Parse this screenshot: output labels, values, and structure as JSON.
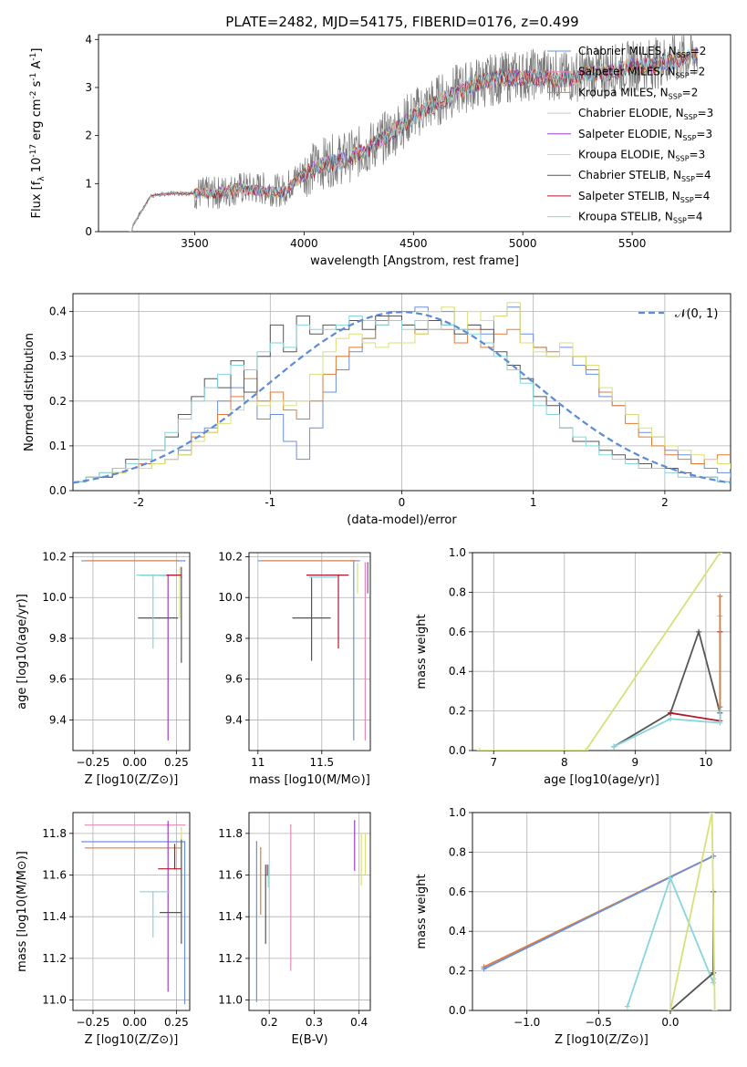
{
  "figure": {
    "title": "PLATE=2482, MJD=54175, FIBERID=0176, z=0.499"
  },
  "models": [
    {
      "name": "Chabrier MILES",
      "nssp": "2",
      "color": "#6a8fde"
    },
    {
      "name": "Salpeter MILES",
      "nssp": "2",
      "color": "#e68ab4"
    },
    {
      "name": "Kroupa MILES",
      "nssp": "2",
      "color": "#e07b39"
    },
    {
      "name": "Chabrier ELODIE",
      "nssp": "3",
      "color": "#c9c9c9"
    },
    {
      "name": "Salpeter ELODIE",
      "nssp": "3",
      "color": "#9b3fc8"
    },
    {
      "name": "Kroupa ELODIE",
      "nssp": "3",
      "color": "#d8e07a"
    },
    {
      "name": "Chabrier STELIB",
      "nssp": "4",
      "color": "#555555"
    },
    {
      "name": "Salpeter STELIB",
      "nssp": "4",
      "color": "#b2182b"
    },
    {
      "name": "Kroupa STELIB",
      "nssp": "4",
      "color": "#86d6dc"
    }
  ],
  "chart_data": [
    {
      "id": "spectrum",
      "type": "line",
      "title": "PLATE=2482, MJD=54175, FIBERID=0176, z=0.499",
      "xlabel": "wavelength [Angstrom, rest frame]",
      "ylabel": "Flux [f_λ 10^-17 erg cm^-2 s^-1 A^-1]",
      "xlim": [
        3060,
        5950
      ],
      "ylim": [
        0,
        4.1
      ],
      "xticks": [
        3500,
        4000,
        4500,
        5000,
        5500
      ],
      "yticks": [
        0,
        1,
        2,
        3,
        4
      ],
      "data_x": [
        3200,
        3300,
        3400,
        3500,
        3600,
        3700,
        3800,
        3900,
        4000,
        4100,
        4200,
        4300,
        4400,
        4500,
        4600,
        4700,
        4800,
        4900,
        5000,
        5100,
        5200,
        5300,
        5400,
        5500,
        5600,
        5700,
        5800
      ],
      "data_y": [
        0.0,
        0.75,
        0.8,
        0.8,
        0.8,
        0.9,
        0.9,
        0.85,
        1.25,
        1.45,
        1.55,
        1.75,
        2.05,
        2.45,
        2.7,
        2.95,
        3.1,
        3.2,
        3.25,
        3.3,
        3.2,
        3.3,
        3.35,
        3.45,
        3.5,
        3.6,
        3.7
      ],
      "model_y": [
        0.0,
        0.75,
        0.8,
        0.8,
        0.8,
        0.9,
        0.85,
        0.8,
        1.2,
        1.4,
        1.5,
        1.75,
        2.05,
        2.4,
        2.65,
        2.9,
        3.1,
        3.2,
        3.2,
        3.2,
        3.15,
        3.3,
        3.3,
        3.45,
        3.45,
        3.55,
        3.7
      ],
      "legend": "right"
    },
    {
      "id": "residuals",
      "type": "histogram",
      "xlabel": "(data-model)/error",
      "ylabel": "Normed distribution",
      "xlim": [
        -2.5,
        2.5
      ],
      "ylim": [
        0,
        0.44
      ],
      "xticks": [
        -2,
        -1,
        0,
        1,
        2
      ],
      "yticks": [
        0.0,
        0.1,
        0.2,
        0.3,
        0.4
      ],
      "reference_label": "𝒩(0, 1)",
      "bin_width": 0.1,
      "series": [
        {
          "name": "Chabrier MILES",
          "values": [
            0.02,
            0.03,
            0.03,
            0.04,
            0.06,
            0.06,
            0.06,
            0.07,
            0.09,
            0.13,
            0.14,
            0.2,
            0.23,
            0.2,
            0.16,
            0.17,
            0.11,
            0.07,
            0.14,
            0.22,
            0.27,
            0.31,
            0.34,
            0.38,
            0.4,
            0.4,
            0.41,
            0.4,
            0.4,
            0.36,
            0.37,
            0.35,
            0.39,
            0.41,
            0.35,
            0.32,
            0.3,
            0.32,
            0.28,
            0.26,
            0.21,
            0.19,
            0.17,
            0.13,
            0.12,
            0.09,
            0.08,
            0.06,
            0.05,
            0.04,
            0.03
          ],
          "x0": -2.5
        },
        {
          "name": "Kroupa MILES",
          "values": [
            0.02,
            0.03,
            0.04,
            0.04,
            0.05,
            0.06,
            0.06,
            0.07,
            0.08,
            0.12,
            0.13,
            0.17,
            0.21,
            0.25,
            0.2,
            0.22,
            0.18,
            0.16,
            0.2,
            0.26,
            0.3,
            0.32,
            0.34,
            0.37,
            0.39,
            0.37,
            0.35,
            0.36,
            0.36,
            0.33,
            0.36,
            0.32,
            0.35,
            0.36,
            0.33,
            0.32,
            0.31,
            0.33,
            0.3,
            0.27,
            0.22,
            0.19,
            0.15,
            0.12,
            0.1,
            0.08,
            0.07,
            0.06,
            0.07,
            0.08,
            0.08
          ],
          "x0": -2.5
        },
        {
          "name": "Chabrier STELIB",
          "values": [
            0.02,
            0.03,
            0.03,
            0.05,
            0.07,
            0.07,
            0.09,
            0.12,
            0.17,
            0.21,
            0.25,
            0.23,
            0.29,
            0.22,
            0.3,
            0.37,
            0.31,
            0.39,
            0.35,
            0.37,
            0.36,
            0.38,
            0.36,
            0.39,
            0.39,
            0.37,
            0.36,
            0.38,
            0.37,
            0.35,
            0.37,
            0.36,
            0.31,
            0.28,
            0.25,
            0.21,
            0.19,
            0.14,
            0.11,
            0.11,
            0.09,
            0.08,
            0.07,
            0.06,
            0.05,
            0.05,
            0.04,
            0.03,
            0.03,
            0.02,
            0.02
          ],
          "x0": -2.5
        },
        {
          "name": "Kroupa ELODIE",
          "values": [
            0.02,
            0.03,
            0.04,
            0.04,
            0.05,
            0.05,
            0.06,
            0.07,
            0.08,
            0.11,
            0.13,
            0.15,
            0.18,
            0.2,
            0.19,
            0.2,
            0.19,
            0.2,
            0.26,
            0.31,
            0.34,
            0.35,
            0.33,
            0.32,
            0.33,
            0.33,
            0.35,
            0.4,
            0.41,
            0.36,
            0.4,
            0.38,
            0.39,
            0.42,
            0.33,
            0.31,
            0.3,
            0.33,
            0.3,
            0.28,
            0.23,
            0.2,
            0.17,
            0.14,
            0.12,
            0.1,
            0.09,
            0.08,
            0.07,
            0.06,
            0.05
          ],
          "x0": -2.5
        },
        {
          "name": "Kroupa STELIB",
          "values": [
            0.02,
            0.03,
            0.04,
            0.05,
            0.06,
            0.07,
            0.09,
            0.13,
            0.16,
            0.2,
            0.23,
            0.26,
            0.28,
            0.27,
            0.31,
            0.33,
            0.32,
            0.37,
            0.36,
            0.36,
            0.37,
            0.39,
            0.38,
            0.37,
            0.38,
            0.36,
            0.38,
            0.36,
            0.37,
            0.36,
            0.35,
            0.33,
            0.3,
            0.27,
            0.24,
            0.19,
            0.17,
            0.14,
            0.12,
            0.1,
            0.08,
            0.07,
            0.06,
            0.05,
            0.05,
            0.04,
            0.03,
            0.03,
            0.03,
            0.02,
            0.02
          ],
          "x0": -2.5
        }
      ]
    },
    {
      "id": "z-age",
      "type": "scatter",
      "xlabel": "Z [log10(Z/Z⊙)]",
      "ylabel": "age [log10(age/yr)]",
      "xlim": [
        -0.37,
        0.33
      ],
      "ylim": [
        9.25,
        10.22
      ],
      "xticks": [
        -0.25,
        0.0,
        0.25
      ],
      "xtick_labels": [
        "−0.25",
        "0.00",
        "0.25"
      ],
      "yticks": [
        9.4,
        9.6,
        9.8,
        10.0,
        10.2
      ],
      "points": [
        {
          "model": "Chabrier MILES",
          "x": 0.3,
          "y": 10.18,
          "xerr": [
            0.62,
            0.0
          ]
        },
        {
          "model": "Kroupa MILES",
          "x": 0.26,
          "y": 10.18,
          "xerr": [
            0.56,
            0.0
          ]
        },
        {
          "model": "Salpeter ELODIE",
          "x": 0.2,
          "y": 10.11,
          "xerr": [
            0.05,
            0.05
          ],
          "yerr": [
            0.81,
            0.0
          ]
        },
        {
          "model": "Kroupa ELODIE",
          "x": 0.27,
          "y": 10.1,
          "yerr": [
            0.2,
            0.05
          ]
        },
        {
          "model": "Chabrier STELIB",
          "x": 0.15,
          "y": 9.9,
          "xerr": [
            0.13,
            0.11
          ]
        },
        {
          "model": "Chabrier STELIB",
          "x": 0.28,
          "y": 10.1,
          "yerr": [
            0.42,
            0.05
          ]
        },
        {
          "model": "Salpeter STELIB",
          "x": 0.18,
          "y": 10.11,
          "xerr": [
            0.15,
            0.1
          ]
        },
        {
          "model": "Kroupa STELIB",
          "x": 0.11,
          "y": 10.11,
          "xerr": [
            0.1,
            0.08
          ],
          "yerr": [
            0.36,
            0.0
          ]
        }
      ]
    },
    {
      "id": "mass-age",
      "type": "scatter",
      "xlabel": "mass [log10(M/M⊙)]",
      "ylabel": "",
      "xlim": [
        10.93,
        11.88
      ],
      "ylim": [
        9.25,
        10.22
      ],
      "xticks": [
        11.0,
        11.5
      ],
      "yticks": [
        9.4,
        9.6,
        9.8,
        10.0,
        10.2
      ],
      "points": [
        {
          "model": "Chabrier MILES",
          "x": 11.75,
          "y": 10.18,
          "xerr": [
            0.75,
            0.05
          ],
          "yerr": [
            0.88,
            0.0
          ]
        },
        {
          "model": "Salpeter MILES",
          "x": 11.84,
          "y": 10.17,
          "yerr": [
            0.87,
            0.0
          ]
        },
        {
          "model": "Kroupa MILES",
          "x": 11.73,
          "y": 10.18,
          "xerr": [
            0.7,
            0.05
          ]
        },
        {
          "model": "Salpeter ELODIE",
          "x": 11.86,
          "y": 10.17,
          "yerr": [
            0.15,
            0.0
          ]
        },
        {
          "model": "Kroupa ELODIE",
          "x": 11.78,
          "y": 10.12,
          "yerr": [
            0.1,
            0.05
          ]
        },
        {
          "model": "Chabrier STELIB",
          "x": 11.42,
          "y": 9.9,
          "xerr": [
            0.15,
            0.15
          ],
          "yerr": [
            0.21,
            0.2
          ]
        },
        {
          "model": "Salpeter STELIB",
          "x": 11.63,
          "y": 10.11,
          "xerr": [
            0.25,
            0.08
          ],
          "yerr": [
            0.36,
            0.0
          ]
        },
        {
          "model": "Kroupa STELIB",
          "x": 11.52,
          "y": 10.1,
          "xerr": [
            0.12,
            0.1
          ]
        }
      ]
    },
    {
      "id": "age-weight",
      "type": "line",
      "xlabel": "age [log10(age/yr)]",
      "ylabel": "mass weight",
      "xlim": [
        6.7,
        10.35
      ],
      "ylim": [
        0,
        1.0
      ],
      "xticks": [
        7,
        8,
        9,
        10
      ],
      "yticks": [
        0.0,
        0.2,
        0.4,
        0.6,
        0.8,
        1.0
      ],
      "series": [
        {
          "name": "Kroupa ELODIE",
          "x": [
            6.8,
            8.3,
            10.2
          ],
          "y": [
            0.0,
            0.0,
            1.0
          ]
        },
        {
          "name": "Chabrier STELIB",
          "x": [
            8.7,
            9.5,
            9.9,
            10.2
          ],
          "y": [
            0.02,
            0.19,
            0.6,
            0.19
          ]
        },
        {
          "name": "Salpeter STELIB",
          "x": [
            9.5,
            10.2,
            10.2
          ],
          "y": [
            0.19,
            0.15,
            0.6
          ]
        },
        {
          "name": "Kroupa STELIB",
          "x": [
            8.7,
            9.5,
            10.2,
            10.2
          ],
          "y": [
            0.02,
            0.16,
            0.14,
            0.68
          ]
        },
        {
          "name": "Kroupa MILES",
          "x": [
            10.2,
            10.2
          ],
          "y": [
            0.22,
            0.78
          ]
        }
      ]
    },
    {
      "id": "z-mass",
      "type": "scatter",
      "xlabel": "Z [log10(Z/Z⊙)]",
      "ylabel": "mass [log10(M/M⊙)]",
      "xlim": [
        -0.37,
        0.33
      ],
      "ylim": [
        10.95,
        11.9
      ],
      "xticks": [
        -0.25,
        0.0,
        0.25
      ],
      "xtick_labels": [
        "−0.25",
        "0.00",
        "0.25"
      ],
      "yticks": [
        11.0,
        11.2,
        11.4,
        11.6,
        11.8
      ],
      "points": [
        {
          "model": "Chabrier MILES",
          "x": 0.3,
          "y": 11.76,
          "xerr": [
            0.62,
            0.0
          ],
          "yerr": [
            0.78,
            0.0
          ]
        },
        {
          "model": "Salpeter MILES",
          "x": 0.3,
          "y": 11.84,
          "xerr": [
            0.6,
            0.0
          ]
        },
        {
          "model": "Kroupa MILES",
          "x": 0.27,
          "y": 11.73,
          "xerr": [
            0.57,
            0.0
          ]
        },
        {
          "model": "Salpeter ELODIE",
          "x": 0.2,
          "y": 11.84,
          "yerr": [
            0.8,
            0.02
          ]
        },
        {
          "model": "Kroupa ELODIE",
          "x": 0.28,
          "y": 11.78,
          "yerr": [
            0.24,
            0.05
          ]
        },
        {
          "model": "Chabrier STELIB",
          "x": 0.28,
          "y": 11.42,
          "xerr": [
            0.13,
            0.0
          ],
          "yerr": [
            0.15,
            0.35
          ]
        },
        {
          "model": "Salpeter STELIB",
          "x": 0.24,
          "y": 11.63,
          "xerr": [
            0.1,
            0.04
          ],
          "yerr": [
            0.0,
            0.12
          ]
        },
        {
          "model": "Kroupa STELIB",
          "x": 0.11,
          "y": 11.52,
          "xerr": [
            0.08,
            0.1
          ],
          "yerr": [
            0.22,
            0.0
          ]
        }
      ]
    },
    {
      "id": "ebv-mass",
      "type": "scatter",
      "xlabel": "E(B-V)",
      "ylabel": "",
      "xlim": [
        0.155,
        0.425
      ],
      "ylim": [
        10.95,
        11.9
      ],
      "xticks": [
        0.2,
        0.3,
        0.4
      ],
      "yticks": [
        11.0,
        11.2,
        11.4,
        11.6,
        11.8
      ],
      "points": [
        {
          "model": "Chabrier MILES",
          "x": 0.172,
          "y": 11.76,
          "yerr": [
            0.77,
            0.0
          ]
        },
        {
          "model": "Kroupa MILES",
          "x": 0.181,
          "y": 11.73,
          "yerr": [
            0.32,
            0.0
          ]
        },
        {
          "model": "Salpeter MILES",
          "x": 0.248,
          "y": 11.84,
          "yerr": [
            0.7,
            0.0
          ]
        },
        {
          "model": "Salpeter ELODIE",
          "x": 0.39,
          "y": 11.86,
          "yerr": [
            0.24,
            0.0
          ]
        },
        {
          "model": "Kroupa ELODIE",
          "x": 0.405,
          "y": 11.8,
          "yerr": [
            0.25,
            0.0
          ]
        },
        {
          "model": "Kroupa ELODIE",
          "x": 0.414,
          "y": 11.8,
          "yerr": [
            0.2,
            0.0
          ]
        },
        {
          "model": "Chabrier STELIB",
          "x": 0.192,
          "y": 11.6,
          "yerr": [
            0.33,
            0.05
          ]
        },
        {
          "model": "Salpeter STELIB",
          "x": 0.196,
          "y": 11.6,
          "yerr": [
            0.0,
            0.05
          ]
        },
        {
          "model": "Kroupa STELIB",
          "x": 0.198,
          "y": 11.62,
          "yerr": [
            0.08,
            0.03
          ]
        }
      ]
    },
    {
      "id": "z-weight",
      "type": "line",
      "xlabel": "Z [log10(Z/Z⊙)]",
      "ylabel": "mass weight",
      "xlim": [
        -1.38,
        0.42
      ],
      "ylim": [
        0,
        1.0
      ],
      "xticks": [
        -1.0,
        -0.5,
        0.0
      ],
      "xtick_labels": [
        "−1.0",
        "−0.5",
        "0.0"
      ],
      "yticks": [
        0.0,
        0.2,
        0.4,
        0.6,
        0.8,
        1.0
      ],
      "series": [
        {
          "name": "Kroupa MILES",
          "x": [
            -1.3,
            0.3
          ],
          "y": [
            0.22,
            0.78
          ]
        },
        {
          "name": "Chabrier MILES",
          "x": [
            -1.3,
            0.3
          ],
          "y": [
            0.21,
            0.78
          ]
        },
        {
          "name": "Kroupa STELIB",
          "x": [
            -0.3,
            0.0,
            0.3,
            0.3
          ],
          "y": [
            0.02,
            0.67,
            0.14,
            0.16
          ]
        },
        {
          "name": "Chabrier STELIB",
          "x": [
            0.0,
            0.3,
            0.3
          ],
          "y": [
            0.0,
            0.19,
            0.6
          ]
        },
        {
          "name": "Kroupa ELODIE",
          "x": [
            0.0,
            0.29,
            0.31
          ],
          "y": [
            0.0,
            1.0,
            0.0
          ]
        }
      ]
    }
  ]
}
